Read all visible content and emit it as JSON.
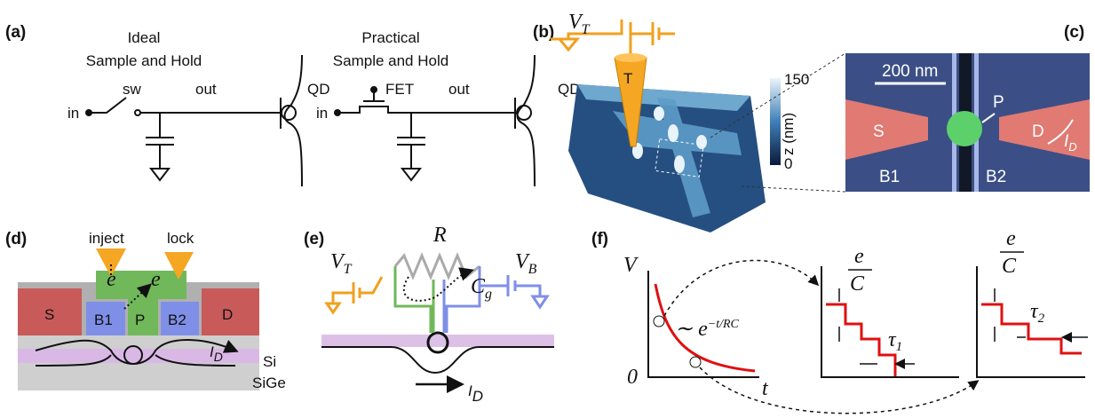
{
  "panels": {
    "a": {
      "label": "(a)",
      "ideal": {
        "title": "Ideal",
        "subtitle": "Sample and Hold",
        "in": "in",
        "switch": "sw",
        "out": "out",
        "dot": "QD"
      },
      "practical": {
        "title": "Practical",
        "subtitle": "Sample and Hold",
        "in": "in",
        "transistor": "FET",
        "out": "out",
        "dot": "QD"
      }
    },
    "b": {
      "label": "(b)",
      "voltage": {
        "symbol": "V",
        "subscript": "T"
      },
      "tip": "T",
      "colorbar": {
        "max": 150,
        "unit": "z (nm)",
        "min": 0
      }
    },
    "c": {
      "label": "(c)",
      "scale_bar": "200 nm",
      "plunger": "P",
      "source": "S",
      "drain": "D",
      "current": {
        "symbol": "I",
        "subscript": "D"
      },
      "barrier_1": "B1",
      "barrier_2": "B2"
    },
    "d": {
      "label": "(d)",
      "inject": "inject",
      "lock": "lock",
      "electron_1": "e",
      "electron_2": "e",
      "source": "S",
      "barrier_1": "B1",
      "plunger": "P",
      "barrier_2": "B2",
      "drain": "D",
      "current": {
        "symbol": "I",
        "subscript": "D"
      },
      "layer_1": "Si",
      "layer_2": "SiGe"
    },
    "e": {
      "label": "(e)",
      "tip_voltage": {
        "symbol": "V",
        "subscript": "T"
      },
      "resistor": "R",
      "capacitance": {
        "symbol": "C",
        "subscript": "g"
      },
      "bias_voltage": {
        "symbol": "V",
        "subscript": "B"
      },
      "current": {
        "symbol": "I",
        "subscript": "D"
      }
    },
    "f": {
      "label": "(f)",
      "y_axis": "V",
      "origin": 0,
      "x_axis": "t",
      "decay": {
        "prefix": "∼ e",
        "exponent": "−t/RC"
      },
      "step_1": {
        "numerator": "e",
        "denominator": "C",
        "time": {
          "symbol": "τ",
          "subscript": "1"
        }
      },
      "step_2": {
        "numerator": "e",
        "denominator": "C",
        "time": {
          "symbol": "τ",
          "subscript": "2"
        }
      }
    }
  }
}
